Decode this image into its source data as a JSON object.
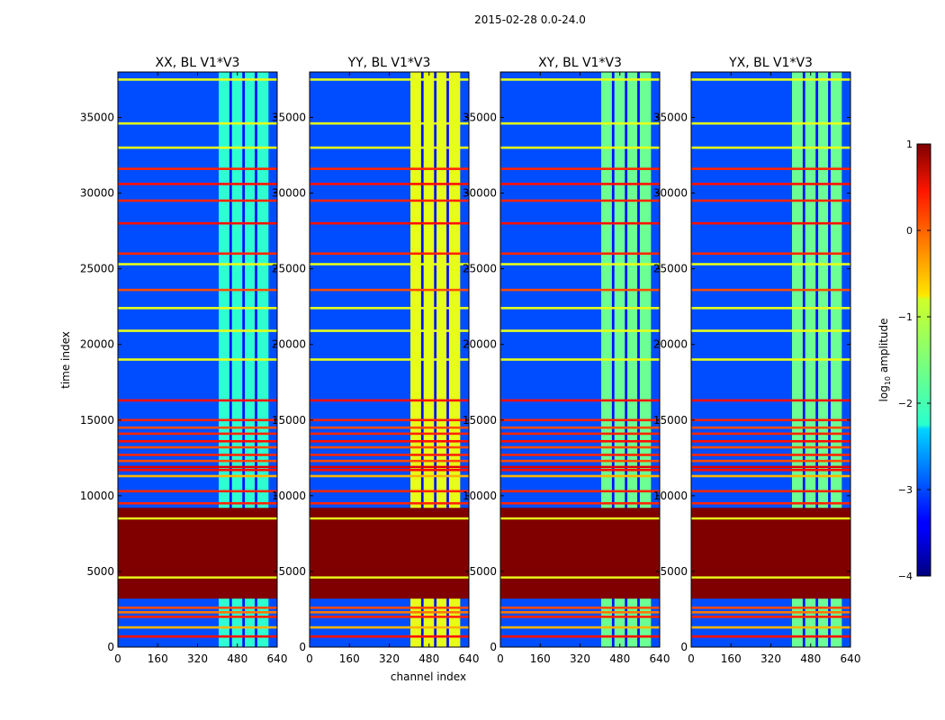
{
  "chart_data": {
    "type": "heatmap",
    "title": "2015-02-28 0.0-24.0",
    "xlabel": "channel index",
    "ylabel": "time index",
    "xlim": [
      0,
      640
    ],
    "ylim": [
      0,
      38000
    ],
    "x_ticks": [
      0,
      160,
      320,
      480,
      640
    ],
    "y_ticks": [
      0,
      5000,
      10000,
      15000,
      20000,
      25000,
      30000,
      35000
    ],
    "y_tick_labels": [
      "0",
      "5000",
      "10000",
      "15000",
      "20000",
      "25000",
      "30000",
      "35000"
    ],
    "panels": [
      {
        "name": "XX, BL V1*V3",
        "active_band": [
          405,
          605
        ],
        "band_level": -1.9
      },
      {
        "name": "YY, BL V1*V3",
        "active_band": [
          405,
          605
        ],
        "band_level": -1.0
      },
      {
        "name": "XY, BL V1*V3",
        "active_band": [
          405,
          605
        ],
        "band_level": -1.6
      },
      {
        "name": "YX, BL V1*V3",
        "active_band": [
          405,
          605
        ],
        "band_level": -1.6
      }
    ],
    "band_gaps": [
      448,
      458,
      500,
      510,
      550,
      560
    ],
    "background_level": -3.0,
    "flagged_block": {
      "range": [
        3200,
        9200
      ],
      "level": 1.0
    },
    "strong_rows": [
      {
        "t": 700,
        "level": 0.3
      },
      {
        "t": 1300,
        "level": -0.5
      },
      {
        "t": 2000,
        "level": 0.2
      },
      {
        "t": 2300,
        "level": -0.2
      },
      {
        "t": 2600,
        "level": 0.0
      },
      {
        "t": 4600,
        "level": -1.0
      },
      {
        "t": 8500,
        "level": -1.0
      },
      {
        "t": 9500,
        "level": 0.2
      },
      {
        "t": 10300,
        "level": 0.2
      },
      {
        "t": 11300,
        "level": -0.5
      },
      {
        "t": 11700,
        "level": 0.3
      },
      {
        "t": 11900,
        "level": 0.5
      },
      {
        "t": 12300,
        "level": 0.0
      },
      {
        "t": 12700,
        "level": 0.2
      },
      {
        "t": 13200,
        "level": 0.0
      },
      {
        "t": 13600,
        "level": 0.3
      },
      {
        "t": 14100,
        "level": 0.2
      },
      {
        "t": 14500,
        "level": 0.0
      },
      {
        "t": 15000,
        "level": 0.2
      },
      {
        "t": 16300,
        "level": 0.3
      },
      {
        "t": 19000,
        "level": -1.0
      },
      {
        "t": 20900,
        "level": -1.0
      },
      {
        "t": 22400,
        "level": -1.0
      },
      {
        "t": 23600,
        "level": 0.0
      },
      {
        "t": 25300,
        "level": -1.0
      },
      {
        "t": 26000,
        "level": 0.2
      },
      {
        "t": 28000,
        "level": 0.3
      },
      {
        "t": 29500,
        "level": 0.2
      },
      {
        "t": 30600,
        "level": 0.3
      },
      {
        "t": 31600,
        "level": 0.2
      },
      {
        "t": 33000,
        "level": -1.0
      },
      {
        "t": 34600,
        "level": -1.0
      },
      {
        "t": 37500,
        "level": -1.0
      }
    ],
    "colorbar": {
      "label": "log10 amplitude",
      "label_main": "log",
      "label_sub": "10",
      "label_rest": " amplitude",
      "range": [
        -4,
        1
      ],
      "ticks": [
        1,
        0,
        -1,
        -2,
        -3,
        -4
      ],
      "tick_labels": [
        "1",
        "0",
        "−1",
        "−2",
        "−3",
        "−4"
      ]
    }
  }
}
